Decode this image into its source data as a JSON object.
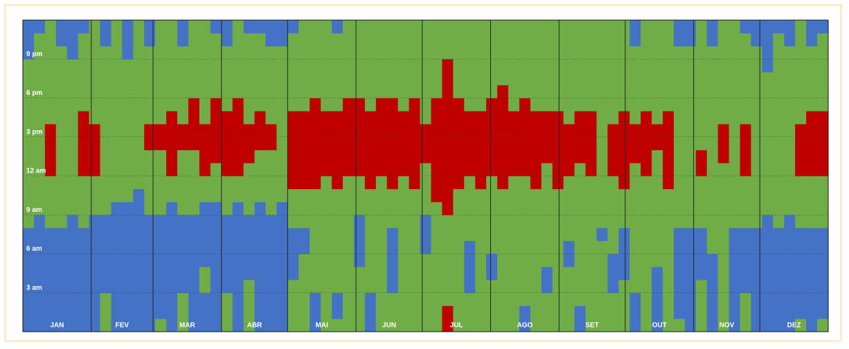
{
  "chart_data": {
    "type": "heatmap",
    "xlim": [
      0,
      365
    ],
    "ylim": [
      0,
      24
    ],
    "yticks": [
      {
        "value": 3,
        "label": "3 am"
      },
      {
        "value": 6,
        "label": "6 am"
      },
      {
        "value": 9,
        "label": "9 am"
      },
      {
        "value": 12,
        "label": "12 am"
      },
      {
        "value": 15,
        "label": "3 pm"
      },
      {
        "value": 18,
        "label": "6 pm"
      },
      {
        "value": 21,
        "label": "9 pm"
      }
    ],
    "grid": true,
    "months": [
      "JAN",
      "FEV",
      "MAR",
      "ABR",
      "MAI",
      "JUN",
      "JUL",
      "AGO",
      "SET",
      "OUT",
      "NOV",
      "DEZ"
    ],
    "month_ends": [
      31,
      59,
      90,
      120,
      151,
      181,
      212,
      243,
      273,
      304,
      334,
      365
    ],
    "colors": {
      "B": "#4472c4",
      "G": "#70ad47",
      "R": "#c00000"
    },
    "columns": [
      "BBBBBBBBGGGGGGGGGGGGGBBB",
      "BBBBBBBBBGGGGGGGGGGGGGGB",
      "BBBBBBBBGGGGRRRRGGGGGGGG",
      "BBBBBBBBGGGGGGGGGGGGGGBB",
      "BBBBBBBBBGGGGGGGGGGGGBBB",
      "BBBBBBBBGGGGRRRRRGGGGGGB",
      "BBBBBBBBBGGGRRRRGGGGGGGG",
      "GGGBBBBBBGGGGGGGGGGGGGBB",
      "BBBBBBBBBBGGGGGGGGGGGGGG",
      "BBBBBBBBBBGGGGGGGGGGGBBB",
      "BBBBBBBBBBBGGGGGGGGGGGGG",
      "BBBBBBBBBGGGGGRRGGGGGGBB",
      "GBBBBBBBBGGGGGRRGGGGGGGG",
      "BBBBBBBBBBGGRRRRRGGGGGGG",
      "GGGBBBBBBGGGGGRRGGGGGGBB",
      "BBBBBBBBBGGGGGRRRRGGGGGG",
      "BBBGGBBBBBGGRRRRGGGGGGGG",
      "BBBBBBBBBBGGGRRRRRGGGGGB",
      "GGGBBBBBBGGGRRRRRGGGGGBB",
      "BBBBBBBBBBGGRRRRRRGGGGGG",
      "GGGGBBBBBGGGGRRRGGGGGGGB",
      "BBBBBBBBBBGGGGRRRGGGGGGB",
      "BBBBBBBBBGGGGGRRGGGGGGBB",
      "BBBBBBBBBBGGGGGGGGGGGGBB",
      "GGGGBBBBGGGRRRRRRGGGGGGB",
      "GGGGGGBBGGGRRRRRRGGGGGGG",
      "BBBGGGGGGGGRRRRRRRGGGGGG",
      "GGGGGGGGGGGGRRRRRGGGGGGG",
      "GBBGGGGGGGGRRRRRRGGGGGGB",
      "GGGGGGGGGGGGRRRRRRGGGGGG",
      "GGGGGBBBBGGGRRRRRRGGGGGG",
      "BBBGGGGGGGGRRRRRRGGGGGGG",
      "GGGGGGGGGGGGRRRRRRGGGGGG",
      "GGGBBBBBGGGRRRRRRRGGGGGG",
      "GGGGGGGGGGGGRRRRRGGGGGGG",
      "GGGGGGGGGGGRRRRRRRGGGGGG",
      "GGGGGGBBBGGGGRRRGGGGGGGG",
      "GGGGGGGGGGRRRRRRRRGGGGGG",
      "RRGGGGGGGRRRRRRRRRRRRGGG",
      "GGGGGGGGGGGRRRRRRRGGGGGG",
      "GGGBBBBGGGGGRRRRRGGGGGGG",
      "GGGGGGGGGGGRRRRRRGGGGGGG",
      "GGGGBBGGGGGGRRRRRRGGGGGG",
      "GGGGGGGGGGGRRRRRRRRGGGGG",
      "GGGGGGGGGGGGRRRRRGGGGGGG",
      "BBGGGGGGGGGGRRRRRRGGGGGG",
      "GGGGGGGGGGGRRRRRRGGGGGGG",
      "GGGBBGGGGGGGGRRRRGGGGGGG",
      "GGGGGGGGGGGRRRRRRGGGGGGG",
      "GGGGGBBGGGGGRRRRGGGGGGGG",
      "BBGGGGGGGGGGGRRRRGGGGGGG",
      "GGGGGGGGGGGGRRRRRGGGGGGG",
      "GGGGGGGBGGGGGGGGGGGGGGGG",
      "GGGBBBGGGGGGRRRRGGGGGGGG",
      "GGGGBBBBGGGRRRRRRGGGGGGG",
      "BBBGGGGGGGGGGRRRGGGGGGBB",
      "GGGGGGGGGGGGRRRRRGGGGGGG",
      "BBBBBGGGGGGGGGRRGGGGGGGG",
      "GGGGGGGGGGGRRRRRRGGGGGGG",
      "GBBBBBBBGGGGGGGGGGGGGGBB",
      "BBBBBBBBGGGGGGGGGGGGGGBB",
      "GGGGBBBBGGGGRRGGGGGGGGGG",
      "BBBBBBGGGGGGGGGGGGGGGGBB",
      "GGGGGGGGGGGGGRRRGGGGGGGG",
      "BBBBBBBBGGGGGGGGGGGGGGGG",
      "GGGBBBBBGGGGRRRRGGGGGGGB",
      "BBBBBBBBGGGGGGGGGGGGGGBB",
      "BBBBBBBBBGGGGGGGGGGGBBBB",
      "BBBBBBBBGGGGGGGGGGGGGGGB",
      "BBBBBBBBBGGGGGGGGGGGGGBB",
      "GBBBBBBBGGGGRRRRGGGGGGGG",
      "BBBBBBBBGGGGRRRRRGGGGGBB",
      "GBBBBBBBGGGGRRRRRGGGGGGB"
    ]
  }
}
